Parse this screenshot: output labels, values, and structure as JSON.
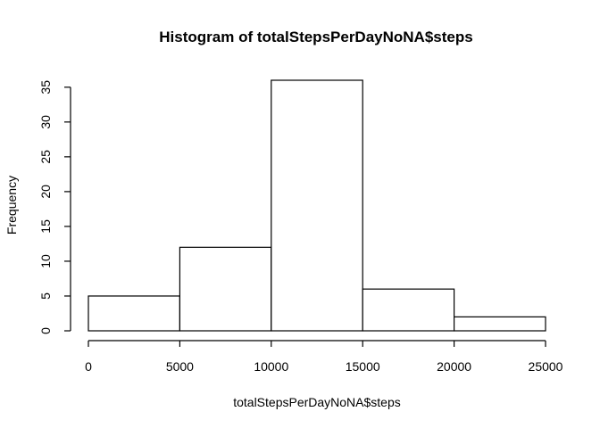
{
  "chart_data": {
    "type": "bar",
    "subtype": "histogram",
    "title": "Histogram of totalStepsPerDayNoNA$steps",
    "xlabel": "totalStepsPerDayNoNA$steps",
    "ylabel": "Frequency",
    "bins": [
      {
        "from": 0,
        "to": 5000,
        "count": 5
      },
      {
        "from": 5000,
        "to": 10000,
        "count": 12
      },
      {
        "from": 10000,
        "to": 15000,
        "count": 36
      },
      {
        "from": 15000,
        "to": 20000,
        "count": 6
      },
      {
        "from": 20000,
        "to": 25000,
        "count": 2
      }
    ],
    "xlim": [
      0,
      25000
    ],
    "ylim": [
      0,
      36
    ],
    "xticks": [
      0,
      5000,
      10000,
      15000,
      20000,
      25000
    ],
    "yticks": [
      0,
      5,
      10,
      15,
      20,
      25,
      30,
      35
    ],
    "grid": false
  }
}
